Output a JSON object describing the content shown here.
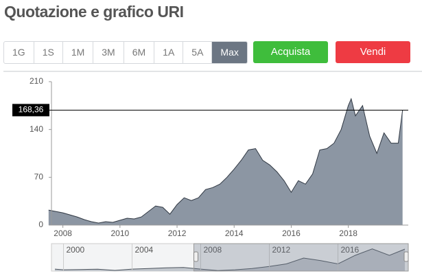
{
  "header": {
    "title": "Quotazione e grafico URI"
  },
  "range_buttons": [
    "1G",
    "1S",
    "1M",
    "3M",
    "6M",
    "1A",
    "5A",
    "Max"
  ],
  "selected_range": 7,
  "actions": {
    "buy": "Acquista",
    "sell": "Vendi"
  },
  "chart_data": [
    {
      "type": "area",
      "color": "#8c96a3",
      "line_color": "#2f3742",
      "x": [
        2007.5,
        2007.75,
        2008.0,
        2008.25,
        2008.5,
        2008.75,
        2009.0,
        2009.25,
        2009.5,
        2009.75,
        2010.0,
        2010.25,
        2010.5,
        2010.75,
        2011.0,
        2011.25,
        2011.5,
        2011.75,
        2012.0,
        2012.25,
        2012.5,
        2012.75,
        2013.0,
        2013.25,
        2013.5,
        2013.75,
        2014.0,
        2014.25,
        2014.5,
        2014.75,
        2015.0,
        2015.25,
        2015.5,
        2015.75,
        2016.0,
        2016.25,
        2016.5,
        2016.75,
        2017.0,
        2017.25,
        2017.5,
        2017.75,
        2018.0,
        2018.1,
        2018.25,
        2018.5,
        2018.75,
        2019.0,
        2019.25,
        2019.5,
        2019.75,
        2019.9
      ],
      "values": [
        22,
        20,
        18,
        15,
        12,
        8,
        5,
        3,
        5,
        4,
        7,
        10,
        9,
        12,
        20,
        28,
        26,
        16,
        30,
        40,
        36,
        40,
        52,
        55,
        60,
        70,
        82,
        95,
        110,
        112,
        95,
        88,
        78,
        65,
        48,
        65,
        60,
        75,
        110,
        112,
        120,
        140,
        175,
        185,
        160,
        175,
        130,
        105,
        135,
        120,
        120,
        168.36
      ],
      "xlim": [
        2007.6,
        2020.1
      ],
      "xticks": [
        2008,
        2010,
        2012,
        2014,
        2016,
        2018
      ],
      "ylim": [
        0,
        210
      ],
      "yticks": [
        0,
        70,
        140,
        210
      ],
      "last_value": {
        "value": 168.36,
        "label": "168,36"
      },
      "grid": false
    },
    {
      "type": "area",
      "color": "#c3c8ce",
      "line_color": "#4a525c",
      "x": [
        1999.5,
        2000,
        2001,
        2002,
        2003,
        2004,
        2005,
        2006,
        2007,
        2008,
        2009,
        2010,
        2011,
        2012,
        2013,
        2014,
        2015,
        2016,
        2017,
        2018,
        2019,
        2019.9
      ],
      "values": [
        15,
        10,
        12,
        14,
        5,
        15,
        20,
        25,
        28,
        15,
        4,
        10,
        20,
        35,
        55,
        100,
        80,
        55,
        120,
        170,
        120,
        168
      ],
      "xlim": [
        1999.3,
        2020.1
      ],
      "xticks": [
        2000,
        2004,
        2008,
        2012,
        2016
      ],
      "ylim": [
        0,
        210
      ]
    }
  ]
}
